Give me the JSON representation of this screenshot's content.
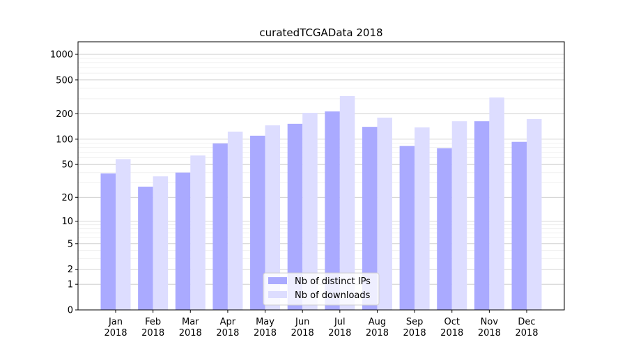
{
  "chart_data": {
    "type": "bar",
    "title": "curatedTCGAData 2018",
    "xlabel": "",
    "ylabel": "",
    "yscale": "log(1+x)",
    "ylim": [
      0,
      1300
    ],
    "yticks": [
      0,
      1,
      2,
      5,
      10,
      20,
      50,
      100,
      200,
      500,
      1000
    ],
    "grid": true,
    "legend_position": "lower center",
    "categories": [
      "Jan\n2018",
      "Feb\n2018",
      "Mar\n2018",
      "Apr\n2018",
      "May\n2018",
      "Jun\n2018",
      "Jul\n2018",
      "Aug\n2018",
      "Sep\n2018",
      "Oct\n2018",
      "Nov\n2018",
      "Dec\n2018"
    ],
    "series": [
      {
        "name": "Nb of distinct IPs",
        "color": "#aaaaff",
        "values": [
          39,
          27,
          40,
          89,
          110,
          152,
          213,
          140,
          83,
          78,
          163,
          93
        ]
      },
      {
        "name": "Nb of downloads",
        "color": "#ddddff",
        "values": [
          58,
          36,
          64,
          123,
          146,
          205,
          323,
          180,
          138,
          163,
          311,
          173
        ]
      }
    ]
  }
}
